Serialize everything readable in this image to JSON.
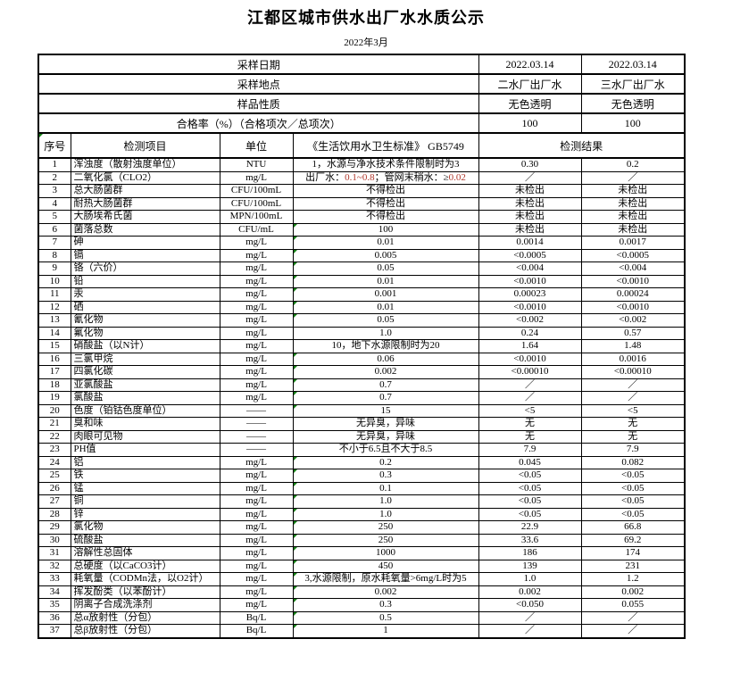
{
  "page": {
    "title": "江都区城市供水出厂水水质公示",
    "subtitle": "2022年3月"
  },
  "colors": {
    "border": "#000000",
    "marker_green": "#148014",
    "digit_red": "#b03a2e",
    "text": "#000000"
  },
  "info_rows": [
    {
      "label": "采样日期",
      "v1": "2022.03.14",
      "v2": "2022.03.14"
    },
    {
      "label": "采样地点",
      "v1": "二水厂出厂水",
      "v2": "三水厂出厂水"
    },
    {
      "label": "样品性质",
      "v1": "无色透明",
      "v2": "无色透明"
    },
    {
      "label": "合格率（%）（合格项次／总项次）",
      "v1": "100",
      "v2": "100"
    }
  ],
  "columns": {
    "index": "序号",
    "item": "检测项目",
    "unit": "单位",
    "standard": "《生活饮用水卫生标准》 GB5749",
    "result": "检测结果"
  },
  "rows": [
    {
      "no": "1",
      "item": "浑浊度（散射浊度单位）",
      "unit": "NTU",
      "standard": "1，水源与净水技术条件限制时为3",
      "r1": "0.30",
      "r2": "0.2",
      "mark": false
    },
    {
      "no": "2",
      "item": "二氧化氯（CLO2）",
      "unit": "mg/L",
      "standard": [
        {
          "t": "出厂水：",
          "c": "#000000"
        },
        {
          "t": "0.1~0.8",
          "c": "#b03a2e"
        },
        {
          "t": "；管网末稍水：≥",
          "c": "#000000"
        },
        {
          "t": "0.02",
          "c": "#b03a2e"
        }
      ],
      "r1": "／",
      "r2": "／",
      "mark": false
    },
    {
      "no": "3",
      "item": "总大肠菌群",
      "unit": "CFU/100mL",
      "standard": "不得检出",
      "r1": "未检出",
      "r2": "未检出",
      "mark": false
    },
    {
      "no": "4",
      "item": "耐热大肠菌群",
      "unit": "CFU/100mL",
      "standard": "不得检出",
      "r1": "未检出",
      "r2": "未检出",
      "mark": false
    },
    {
      "no": "5",
      "item": "大肠埃希氏菌",
      "unit": "MPN/100mL",
      "standard": "不得检出",
      "r1": "未检出",
      "r2": "未检出",
      "mark": false
    },
    {
      "no": "6",
      "item": "菌落总数",
      "unit": "CFU/mL",
      "standard": "100",
      "r1": "未检出",
      "r2": "未检出",
      "mark": true
    },
    {
      "no": "7",
      "item": "砷",
      "unit": "mg/L",
      "standard": "0.01",
      "r1": "0.0014",
      "r2": "0.0017",
      "mark": true
    },
    {
      "no": "8",
      "item": "镉",
      "unit": "mg/L",
      "standard": "0.005",
      "r1": "<0.0005",
      "r2": "<0.0005",
      "mark": true
    },
    {
      "no": "9",
      "item": "铬（六价）",
      "unit": "mg/L",
      "standard": "0.05",
      "r1": "<0.004",
      "r2": "<0.004",
      "mark": true
    },
    {
      "no": "10",
      "item": "铅",
      "unit": "mg/L",
      "standard": "0.01",
      "r1": "<0.0010",
      "r2": "<0.0010",
      "mark": true
    },
    {
      "no": "11",
      "item": "汞",
      "unit": "mg/L",
      "standard": "0.001",
      "r1": "0.00023",
      "r2": "0.00024",
      "mark": true
    },
    {
      "no": "12",
      "item": "硒",
      "unit": "mg/L",
      "standard": "0.01",
      "r1": "<0.0010",
      "r2": "<0.0010",
      "mark": true
    },
    {
      "no": "13",
      "item": "氰化物",
      "unit": "mg/L",
      "standard": "0.05",
      "r1": "<0.002",
      "r2": "<0.002",
      "mark": true
    },
    {
      "no": "14",
      "item": "氟化物",
      "unit": "mg/L",
      "standard": "1.0",
      "r1": "0.24",
      "r2": "0.57",
      "mark": false
    },
    {
      "no": "15",
      "item": "硝酸盐（以N计）",
      "unit": "mg/L",
      "standard": "10，地下水源限制时为20",
      "r1": "1.64",
      "r2": "1.48",
      "mark": false
    },
    {
      "no": "16",
      "item": "三氯甲烷",
      "unit": "mg/L",
      "standard": "0.06",
      "r1": "<0.0010",
      "r2": "0.0016",
      "mark": true
    },
    {
      "no": "17",
      "item": "四氯化碳",
      "unit": "mg/L",
      "standard": "0.002",
      "r1": "<0.00010",
      "r2": "<0.00010",
      "mark": true
    },
    {
      "no": "18",
      "item": "亚氯酸盐",
      "unit": "mg/L",
      "standard": "0.7",
      "r1": "／",
      "r2": "／",
      "mark": true
    },
    {
      "no": "19",
      "item": "氯酸盐",
      "unit": "mg/L",
      "standard": "0.7",
      "r1": "／",
      "r2": "／",
      "mark": true
    },
    {
      "no": "20",
      "item": "色度（铂钴色度单位）",
      "unit": "——",
      "standard": "15",
      "r1": "<5",
      "r2": "<5",
      "mark": true
    },
    {
      "no": "21",
      "item": "臭和味",
      "unit": "——",
      "standard": "无异臭，异味",
      "r1": "无",
      "r2": "无",
      "mark": false
    },
    {
      "no": "22",
      "item": "肉眼可见物",
      "unit": "——",
      "standard": "无异臭，异味",
      "r1": "无",
      "r2": "无",
      "mark": false
    },
    {
      "no": "23",
      "item": "PH值",
      "unit": "——",
      "standard": "不小于6.5且不大于8.5",
      "r1": "7.9",
      "r2": "7.9",
      "mark": false
    },
    {
      "no": "24",
      "item": "铝",
      "unit": "mg/L",
      "standard": "0.2",
      "r1": "0.045",
      "r2": "0.082",
      "mark": true
    },
    {
      "no": "25",
      "item": "铁",
      "unit": "mg/L",
      "standard": "0.3",
      "r1": "<0.05",
      "r2": "<0.05",
      "mark": true
    },
    {
      "no": "26",
      "item": "锰",
      "unit": "mg/L",
      "standard": "0.1",
      "r1": "<0.05",
      "r2": "<0.05",
      "mark": true
    },
    {
      "no": "27",
      "item": "铜",
      "unit": "mg/L",
      "standard": "1.0",
      "r1": "<0.05",
      "r2": "<0.05",
      "mark": true
    },
    {
      "no": "28",
      "item": "锌",
      "unit": "mg/L",
      "standard": "1.0",
      "r1": "<0.05",
      "r2": "<0.05",
      "mark": true
    },
    {
      "no": "29",
      "item": "氯化物",
      "unit": "mg/L",
      "standard": "250",
      "r1": "22.9",
      "r2": "66.8",
      "mark": true
    },
    {
      "no": "30",
      "item": "硫酸盐",
      "unit": "mg/L",
      "standard": "250",
      "r1": "33.6",
      "r2": "69.2",
      "mark": true
    },
    {
      "no": "31",
      "item": "溶解性总固体",
      "unit": "mg/L",
      "standard": "1000",
      "r1": "186",
      "r2": "174",
      "mark": true
    },
    {
      "no": "32",
      "item": "总硬度（以CaCO3计）",
      "unit": "mg/L",
      "standard": "450",
      "r1": "139",
      "r2": "231",
      "mark": true
    },
    {
      "no": "33",
      "item": "耗氧量（CODMn法，以O2计）",
      "unit": "mg/L",
      "standard": "3,水源限制，原水耗氧量>6mg/L时为5",
      "r1": "1.0",
      "r2": "1.2",
      "mark": true
    },
    {
      "no": "34",
      "item": "挥发酚类（以苯酚计）",
      "unit": "mg/L",
      "standard": "0.002",
      "r1": "0.002",
      "r2": "0.002",
      "mark": true
    },
    {
      "no": "35",
      "item": "阴离子合成洗涤剂",
      "unit": "mg/L",
      "standard": "0.3",
      "r1": "<0.050",
      "r2": "0.055",
      "mark": true
    },
    {
      "no": "36",
      "item": "总α放射性（分包）",
      "unit": "Bq/L",
      "standard": "0.5",
      "r1": "／",
      "r2": "／",
      "mark": true
    },
    {
      "no": "37",
      "item": "总β放射性（分包）",
      "unit": "Bq/L",
      "standard": "1",
      "r1": "／",
      "r2": "／",
      "mark": true
    }
  ]
}
